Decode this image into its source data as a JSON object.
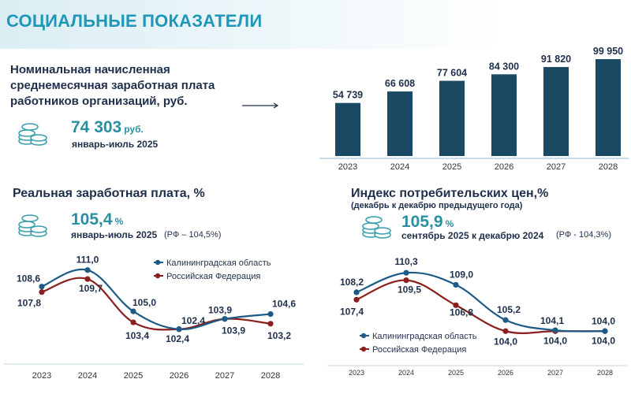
{
  "page": {
    "title": "СОЦИАЛЬНЫЕ ПОКАЗАТЕЛИ"
  },
  "salary": {
    "title_lines": [
      "Номинальная начисленная",
      "среднемесячная заработная плата",
      "работников организаций, руб."
    ],
    "value": "74 303",
    "unit": "руб.",
    "period": "январь-июль 2025"
  },
  "real_wage": {
    "title": "Реальная заработная плата, %",
    "value": "105,4",
    "unit": "%",
    "period": "январь-июль 2025",
    "reference": "(РФ – 104,5%)"
  },
  "cpi": {
    "title": "Индекс потребительских цен,%",
    "subtitle": "(декабрь к декабрю предыдущего года)",
    "value": "105,9",
    "unit": "%",
    "period": "сентябрь 2025 к декабрю 2024",
    "reference": "(РФ - 104,3%)"
  },
  "icons": {
    "coins": "coins-stack-icon",
    "arrow": "arrow-right-icon"
  },
  "colors": {
    "bar": "#1a4a63",
    "kaliningrad": "#1c5b86",
    "russia": "#8b1f1f",
    "accent": "#2a8fa0"
  },
  "chart_data": [
    {
      "type": "bar",
      "title": "Номинальная начисленная среднемесячная заработная плата работников организаций, руб.",
      "categories": [
        "2023",
        "2024",
        "2025",
        "2026",
        "2027",
        "2028"
      ],
      "values": [
        54739,
        66608,
        77604,
        84300,
        91820,
        99950
      ],
      "value_labels": [
        "54 739",
        "66 608",
        "77 604",
        "84 300",
        "91 820",
        "99 950"
      ],
      "ylim": [
        0,
        100000
      ]
    },
    {
      "type": "line",
      "title": "Реальная заработная плата, %",
      "categories": [
        "2023",
        "2024",
        "2025",
        "2026",
        "2027",
        "2028"
      ],
      "ylim": [
        101,
        112
      ],
      "series": [
        {
          "name": "Калининградская область",
          "values": [
            108.6,
            111.0,
            105.0,
            102.4,
            103.9,
            104.6
          ],
          "labels": [
            "108,6",
            "111,0",
            "105,0",
            "102,4",
            "103,9",
            "104,6"
          ]
        },
        {
          "name": "Российская Федерация",
          "values": [
            107.8,
            109.7,
            103.4,
            102.4,
            103.9,
            103.2
          ],
          "labels": [
            "107,8",
            "109,7",
            "103,4",
            "102,4",
            "103,9",
            "103,2"
          ]
        }
      ]
    },
    {
      "type": "line",
      "title": "Индекс потребительских цен,%",
      "categories": [
        "2023",
        "2024",
        "2025",
        "2026",
        "2027",
        "2028"
      ],
      "ylim": [
        103,
        111
      ],
      "series": [
        {
          "name": "Калининградская область",
          "values": [
            108.2,
            110.3,
            109.0,
            105.2,
            104.1,
            104.0
          ],
          "labels": [
            "108,2",
            "110,3",
            "109,0",
            "105,2",
            "104,1",
            "104,0"
          ]
        },
        {
          "name": "Российская Федерация",
          "values": [
            107.4,
            109.5,
            106.8,
            104.0,
            104.0,
            104.0
          ],
          "labels": [
            "107,4",
            "109,5",
            "106,8",
            "104,0",
            "104,0",
            "104,0"
          ]
        }
      ]
    }
  ]
}
